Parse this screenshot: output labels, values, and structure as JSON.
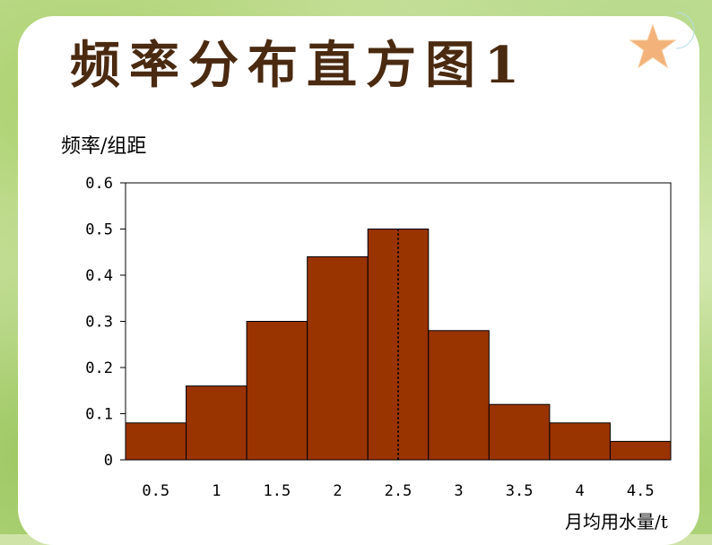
{
  "title": "频率分布直方图1",
  "chart_data": {
    "type": "bar",
    "categories": [
      "0.5",
      "1",
      "1.5",
      "2",
      "2.5",
      "3",
      "3.5",
      "4",
      "4.5"
    ],
    "values": [
      0.08,
      0.16,
      0.3,
      0.44,
      0.5,
      0.28,
      0.12,
      0.08,
      0.04
    ],
    "ylabel": "频率/组距",
    "xlabel": "月均用水量/t",
    "yticks": [
      "0",
      "0.1",
      "0.2",
      "0.3",
      "0.4",
      "0.5",
      "0.6"
    ],
    "ylim": [
      0,
      0.6
    ],
    "xlim": [
      0,
      4.5
    ],
    "median_marker_x": 2.5,
    "bar_color": "#993300",
    "grid": false
  }
}
